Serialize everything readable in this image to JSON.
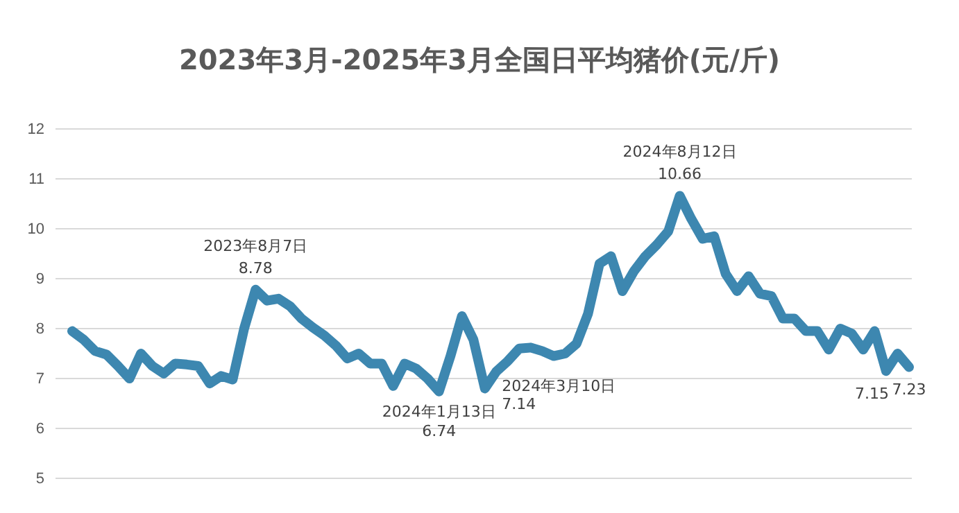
{
  "chart_data": {
    "type": "line",
    "title": "2023年3月-2025年3月全国日平均猪价(元/斤)",
    "categories": [
      null,
      null,
      null,
      null,
      null,
      null,
      null,
      null,
      null,
      null,
      null,
      null,
      null,
      null,
      null,
      null,
      null,
      null,
      null,
      null,
      null,
      null,
      null,
      null,
      null,
      null,
      null,
      null,
      null,
      null,
      null,
      null,
      null,
      null,
      null,
      null,
      null,
      null,
      null,
      null,
      null,
      null,
      null,
      null,
      null,
      null,
      null,
      null,
      null,
      null,
      null,
      null,
      null,
      null,
      null,
      null,
      null,
      null,
      null,
      null,
      null,
      null,
      null,
      null,
      null,
      null,
      null,
      null,
      null,
      null,
      null,
      null,
      null,
      null
    ],
    "series": [
      {
        "color": "#3d87b0",
        "values": [
          7.95,
          7.78,
          7.55,
          7.48,
          7.25,
          7.0,
          7.5,
          7.25,
          7.1,
          7.3,
          7.28,
          7.25,
          6.9,
          7.05,
          6.98,
          8.0,
          8.78,
          8.56,
          8.6,
          8.45,
          8.2,
          8.02,
          7.86,
          7.66,
          7.4,
          7.5,
          7.3,
          7.3,
          6.85,
          7.3,
          7.2,
          7.0,
          6.74,
          7.45,
          8.25,
          7.78,
          6.8,
          7.14,
          7.35,
          7.6,
          7.62,
          7.55,
          7.45,
          7.5,
          7.7,
          8.3,
          9.3,
          9.45,
          8.75,
          9.15,
          9.45,
          9.68,
          9.95,
          10.66,
          10.2,
          9.8,
          9.85,
          9.1,
          8.75,
          9.05,
          8.7,
          8.65,
          8.2,
          8.2,
          7.95,
          7.95,
          7.58,
          8.0,
          7.9,
          7.58,
          7.95,
          7.15,
          7.5,
          7.23
        ],
        "value_labels": [
          null,
          null,
          null,
          null,
          null,
          null,
          null,
          null,
          null,
          null,
          null,
          null,
          null,
          null,
          null,
          null,
          "8.78",
          null,
          null,
          null,
          null,
          null,
          null,
          null,
          null,
          null,
          null,
          null,
          null,
          null,
          null,
          null,
          "6.74",
          null,
          null,
          null,
          null,
          "7.14",
          null,
          null,
          null,
          null,
          null,
          null,
          null,
          null,
          null,
          null,
          null,
          null,
          null,
          null,
          null,
          "10.66",
          null,
          null,
          null,
          null,
          null,
          null,
          null,
          null,
          null,
          null,
          null,
          null,
          null,
          null,
          null,
          null,
          null,
          "7.15",
          null,
          "7.23"
        ]
      }
    ],
    "ylim": [
      5,
      12
    ],
    "yticks": [
      5,
      6,
      7,
      8,
      9,
      10,
      11,
      12
    ],
    "grid": "y",
    "annotations": [
      {
        "text": "2023年8月7日",
        "y": 8.78
      },
      {
        "text": "2024年1月13日",
        "y": 6.74
      },
      "2024年3月10日",
      {
        "text": "2024年8月12日",
        "y": 10.66
      }
    ]
  }
}
